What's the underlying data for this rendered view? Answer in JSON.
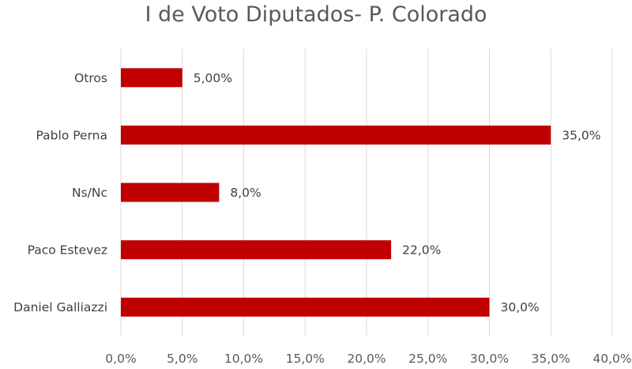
{
  "chart_data": {
    "type": "bar",
    "orientation": "horizontal",
    "title": "I de Voto Diputados- P. Colorado",
    "categories": [
      "Otros",
      "Pablo Perna",
      "Ns/Nc",
      "Paco Estevez",
      "Daniel Galliazzi"
    ],
    "values": [
      5.0,
      35.0,
      8.0,
      22.0,
      30.0
    ],
    "data_labels": [
      "5,00%",
      "35,0%",
      "8,0%",
      "22,0%",
      "30,0%"
    ],
    "xlim": [
      0,
      40
    ],
    "x_ticks": [
      0,
      5,
      10,
      15,
      20,
      25,
      30,
      35,
      40
    ],
    "x_tick_labels": [
      "0,0%",
      "5,0%",
      "10,0%",
      "15,0%",
      "20,0%",
      "25,0%",
      "30,0%",
      "35,0%",
      "40,0%"
    ],
    "xlabel": "",
    "ylabel": "",
    "grid": "vertical",
    "legend": "none",
    "bar_color": "#C00000"
  }
}
